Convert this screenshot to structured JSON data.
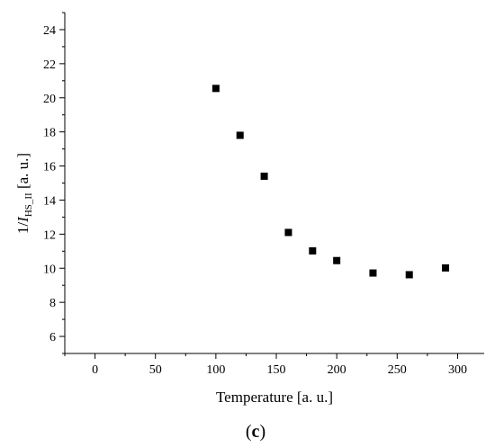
{
  "chart_data": {
    "type": "scatter",
    "title": "",
    "xlabel": "Temperature [a. u.]",
    "ylabel": {
      "prefix": "1/",
      "italic": "I",
      "subscript": "HS_II",
      "suffix": " [a. u.]"
    },
    "xlim": [
      -25,
      322
    ],
    "ylim": [
      5,
      25
    ],
    "xticks": [
      0,
      50,
      100,
      150,
      200,
      250,
      300
    ],
    "yticks": [
      6,
      8,
      10,
      12,
      14,
      16,
      18,
      20,
      22,
      24
    ],
    "grid": false,
    "marker": "square",
    "marker_color": "#000000",
    "points": [
      {
        "x": 100,
        "y": 20.55
      },
      {
        "x": 120,
        "y": 17.8
      },
      {
        "x": 140,
        "y": 15.4
      },
      {
        "x": 160,
        "y": 12.1
      },
      {
        "x": 180,
        "y": 11.02
      },
      {
        "x": 200,
        "y": 10.45
      },
      {
        "x": 230,
        "y": 9.72
      },
      {
        "x": 260,
        "y": 9.62
      },
      {
        "x": 290,
        "y": 10.02
      }
    ]
  },
  "panel_label": {
    "open": "(",
    "letter": "c",
    "close": ")"
  }
}
